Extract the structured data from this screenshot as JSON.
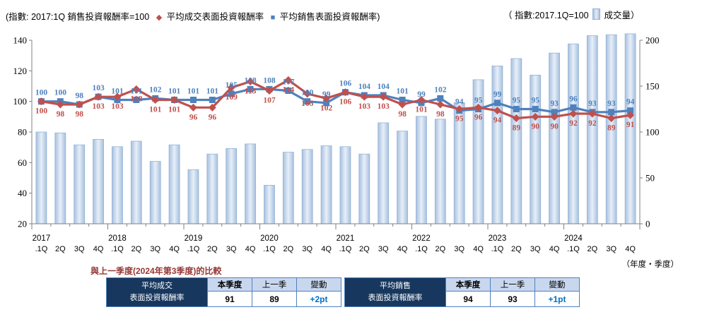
{
  "legend": {
    "left_prefix": "(指數: 2017:1Q 銷售投資報酬率=100",
    "series_deal": "平均成交表面投資報酬率",
    "series_sales": "平均銷售表面投資報酬率)",
    "right_prefix": "（ 指數:2017.1Q=100",
    "right_suffix": "成交量）"
  },
  "chart_data": {
    "type": "combo (bar + 2 lines)",
    "years": [
      "2017",
      "2018",
      "2019",
      "2020",
      "2021",
      "2022",
      "2023",
      "2024"
    ],
    "quarter_labels": [
      ".1Q",
      "2Q",
      "3Q",
      "4Q"
    ],
    "left_axis": {
      "min": 20,
      "max": 140,
      "ticks": [
        140,
        120,
        100,
        80,
        60,
        40,
        20
      ]
    },
    "right_axis": {
      "min": 0,
      "max": 200,
      "ticks": [
        200,
        150,
        100,
        50,
        0
      ]
    },
    "x_axis_note": "（年度・季度）",
    "series": [
      {
        "name": "平均成交表面投資報酬率",
        "type": "line",
        "marker": "diamond",
        "color": "#C0504D",
        "axis": "left",
        "values": [
          100,
          98,
          98,
          103,
          103,
          108,
          101,
          101,
          96,
          96,
          109,
          113,
          107,
          114,
          105,
          102,
          106,
          103,
          103,
          98,
          101,
          98,
          95,
          96,
          94,
          89,
          90,
          90,
          92,
          92,
          89,
          91
        ]
      },
      {
        "name": "平均銷售表面投資報酬率",
        "type": "line",
        "marker": "square",
        "color": "#4F81BD",
        "axis": "left",
        "values": [
          100,
          100,
          98,
          103,
          101,
          101,
          102,
          101,
          101,
          101,
          105,
          108,
          108,
          107,
          100,
          99,
          106,
          104,
          104,
          101,
          99,
          102,
          94,
          95,
          99,
          95,
          95,
          93,
          96,
          93,
          93,
          94
        ]
      },
      {
        "name": "成交量",
        "type": "bar",
        "color": "#C5D9F1",
        "border": "#95B3D7",
        "axis": "right",
        "values_estimated": [
          100,
          99,
          86,
          92,
          84,
          90,
          68,
          86,
          59,
          76,
          82,
          87,
          42,
          78,
          81,
          85,
          84,
          76,
          110,
          101,
          117,
          114,
          132,
          157,
          172,
          180,
          162,
          186,
          196,
          205,
          206,
          207
        ]
      }
    ]
  },
  "comparison": {
    "title": "與上一季度(2024年第3季度)的比較",
    "tables": [
      {
        "row_header_line1": "平均成交",
        "row_header_line2": "表面投資報酬率",
        "col_headers": [
          "本季度",
          "上一季",
          "變動"
        ],
        "values": [
          "91",
          "89",
          "+2pt"
        ]
      },
      {
        "row_header_line1": "平均銷售",
        "row_header_line2": "表面投資報酬率",
        "col_headers": [
          "本季度",
          "上一季",
          "變動"
        ],
        "values": [
          "94",
          "93",
          "+1pt"
        ]
      }
    ]
  }
}
